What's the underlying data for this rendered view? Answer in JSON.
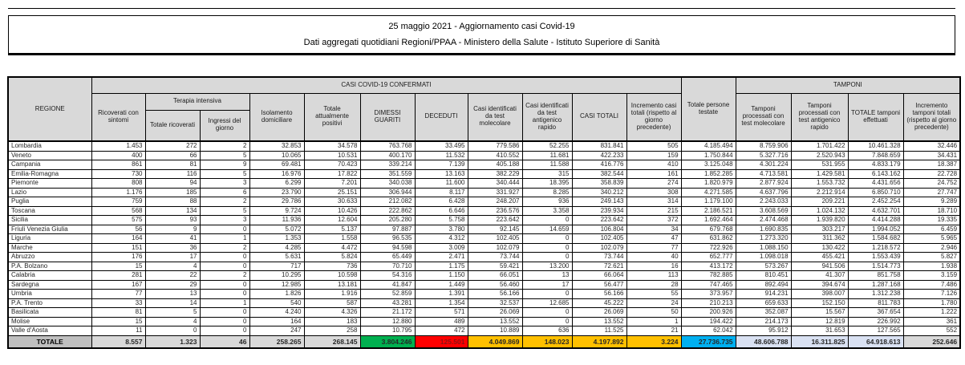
{
  "title": {
    "line1": "25 maggio 2021 - Aggiornamento casi Covid-19",
    "line2": "Dati aggregati quotidiani Regioni/PPAA - Ministero della Salute - Istituto Superiore di Sanità"
  },
  "table": {
    "group_headers": {
      "confirmed": "CASI COVID-19 CONFERMATI",
      "tamponi": "TAMPONI",
      "terapia": "Terapia intensiva"
    },
    "columns": [
      "REGIONE",
      "Ricoverati con sintomi",
      "Totale ricoverati",
      "Ingressi del giorno",
      "Isolamento domiciliare",
      "Totale attualmente positivi",
      "DIMESSI GUARITI",
      "DECEDUTI",
      "Casi identificati da test molecolare",
      "Casi identificati da test antigenico rapido",
      "CASI TOTALI",
      "Incremento casi totali (rispetto al giorno precedente)",
      "Totale persone testate",
      "Tamponi processati con test molecolare",
      "Tamponi processati con test antigenico rapido",
      "TOTALE tamponi effettuati",
      "Incremento tamponi totali (rispetto al giorno precedente)"
    ],
    "rows": [
      {
        "region": "Lombardia",
        "values": [
          "1.453",
          "272",
          "2",
          "32.853",
          "34.578",
          "763.768",
          "33.495",
          "779.586",
          "52.255",
          "831.841",
          "505",
          "4.185.494",
          "8.759.906",
          "1.701.422",
          "10.461.328",
          "32.446"
        ]
      },
      {
        "region": "Veneto",
        "values": [
          "400",
          "66",
          "5",
          "10.065",
          "10.531",
          "400.170",
          "11.532",
          "410.552",
          "11.681",
          "422.233",
          "159",
          "1.750.844",
          "5.327.716",
          "2.520.943",
          "7.848.659",
          "34.431"
        ]
      },
      {
        "region": "Campania",
        "values": [
          "861",
          "81",
          "9",
          "69.481",
          "70.423",
          "339.214",
          "7.139",
          "405.188",
          "11.588",
          "416.776",
          "410",
          "3.125.048",
          "4.301.224",
          "531.955",
          "4.833.179",
          "18.387"
        ]
      },
      {
        "region": "Emilia-Romagna",
        "values": [
          "730",
          "116",
          "5",
          "16.976",
          "17.822",
          "351.559",
          "13.163",
          "382.229",
          "315",
          "382.544",
          "161",
          "1.852.285",
          "4.713.581",
          "1.429.581",
          "6.143.162",
          "22.728"
        ]
      },
      {
        "region": "Piemonte",
        "values": [
          "808",
          "94",
          "3",
          "6.299",
          "7.201",
          "340.038",
          "11.600",
          "340.444",
          "18.395",
          "358.839",
          "274",
          "1.820.979",
          "2.877.924",
          "1.553.732",
          "4.431.656",
          "24.752"
        ]
      },
      {
        "region": "Lazio",
        "values": [
          "1.176",
          "185",
          "6",
          "23.790",
          "25.151",
          "306.944",
          "8.117",
          "331.927",
          "8.285",
          "340.212",
          "308",
          "4.271.585",
          "4.637.796",
          "2.212.914",
          "6.850.710",
          "27.747"
        ]
      },
      {
        "region": "Puglia",
        "values": [
          "759",
          "88",
          "2",
          "29.786",
          "30.633",
          "212.082",
          "6.428",
          "248.207",
          "936",
          "249.143",
          "314",
          "1.179.100",
          "2.243.033",
          "209.221",
          "2.452.254",
          "9.289"
        ]
      },
      {
        "region": "Toscana",
        "values": [
          "568",
          "134",
          "5",
          "9.724",
          "10.426",
          "222.862",
          "6.646",
          "236.576",
          "3.358",
          "239.934",
          "215",
          "2.186.521",
          "3.608.569",
          "1.024.132",
          "4.632.701",
          "18.710"
        ]
      },
      {
        "region": "Sicilia",
        "values": [
          "575",
          "93",
          "3",
          "11.936",
          "12.604",
          "205.280",
          "5.758",
          "223.642",
          "0",
          "223.642",
          "372",
          "1.692.464",
          "2.474.468",
          "1.939.820",
          "4.414.288",
          "19.335"
        ]
      },
      {
        "region": "Friuli Venezia Giulia",
        "values": [
          "56",
          "9",
          "0",
          "5.072",
          "5.137",
          "97.887",
          "3.780",
          "92.145",
          "14.659",
          "106.804",
          "34",
          "679.768",
          "1.690.835",
          "303.217",
          "1.994.052",
          "6.459"
        ]
      },
      {
        "region": "Liguria",
        "values": [
          "164",
          "41",
          "1",
          "1.353",
          "1.558",
          "96.535",
          "4.312",
          "102.405",
          "0",
          "102.405",
          "47",
          "631.862",
          "1.273.320",
          "311.362",
          "1.584.682",
          "5.965"
        ]
      },
      {
        "region": "Marche",
        "values": [
          "151",
          "36",
          "2",
          "4.285",
          "4.472",
          "94.598",
          "3.009",
          "102.079",
          "0",
          "102.079",
          "77",
          "722.926",
          "1.088.150",
          "130.422",
          "1.218.572",
          "2.946"
        ]
      },
      {
        "region": "Abruzzo",
        "values": [
          "176",
          "17",
          "0",
          "5.631",
          "5.824",
          "65.449",
          "2.471",
          "73.744",
          "0",
          "73.744",
          "40",
          "652.777",
          "1.098.018",
          "455.421",
          "1.553.439",
          "5.827"
        ]
      },
      {
        "region": "P.A. Bolzano",
        "values": [
          "15",
          "4",
          "0",
          "717",
          "736",
          "70.710",
          "1.175",
          "59.421",
          "13.200",
          "72.621",
          "16",
          "413.172",
          "573.267",
          "941.506",
          "1.514.773",
          "1.938"
        ]
      },
      {
        "region": "Calabria",
        "values": [
          "281",
          "22",
          "2",
          "10.295",
          "10.598",
          "54.316",
          "1.150",
          "66.051",
          "13",
          "66.064",
          "113",
          "782.885",
          "810.451",
          "41.307",
          "851.758",
          "3.159"
        ]
      },
      {
        "region": "Sardegna",
        "values": [
          "167",
          "29",
          "0",
          "12.985",
          "13.181",
          "41.847",
          "1.449",
          "56.460",
          "17",
          "56.477",
          "28",
          "747.465",
          "892.494",
          "394.674",
          "1.287.168",
          "7.486"
        ]
      },
      {
        "region": "Umbria",
        "values": [
          "77",
          "13",
          "0",
          "1.826",
          "1.916",
          "52.859",
          "1.391",
          "56.166",
          "0",
          "56.166",
          "55",
          "373.957",
          "914.231",
          "398.007",
          "1.312.238",
          "7.126"
        ]
      },
      {
        "region": "P.A. Trento",
        "values": [
          "33",
          "14",
          "1",
          "540",
          "587",
          "43.281",
          "1.354",
          "32.537",
          "12.685",
          "45.222",
          "24",
          "210.213",
          "659.633",
          "152.150",
          "811.783",
          "1.780"
        ]
      },
      {
        "region": "Basilicata",
        "values": [
          "81",
          "5",
          "0",
          "4.240",
          "4.326",
          "21.172",
          "571",
          "26.069",
          "0",
          "26.069",
          "50",
          "200.926",
          "352.087",
          "15.567",
          "367.654",
          "1.222"
        ]
      },
      {
        "region": "Molise",
        "values": [
          "15",
          "4",
          "0",
          "164",
          "183",
          "12.880",
          "489",
          "13.552",
          "0",
          "13.552",
          "1",
          "194.422",
          "214.173",
          "12.819",
          "226.992",
          "361"
        ]
      },
      {
        "region": "Valle d'Aosta",
        "values": [
          "11",
          "0",
          "0",
          "247",
          "258",
          "10.795",
          "472",
          "10.889",
          "636",
          "11.525",
          "21",
          "62.042",
          "95.912",
          "31.653",
          "127.565",
          "552"
        ]
      }
    ],
    "total": {
      "label": "TOTALE",
      "values": [
        "8.557",
        "1.323",
        "46",
        "258.265",
        "268.145",
        "3.804.246",
        "125.501",
        "4.049.869",
        "148.023",
        "4.197.892",
        "3.224",
        "27.736.735",
        "48.606.788",
        "16.311.825",
        "64.918.613",
        "252.646"
      ]
    }
  },
  "colors": {
    "green": "#00B050",
    "red": "#FF0000",
    "yellow": "#FFC000",
    "cyan": "#00B0F0",
    "light_blue": "#D9E1F2",
    "header_grey": "#D9D9D9",
    "dark_grey": "#BFBFBF"
  }
}
